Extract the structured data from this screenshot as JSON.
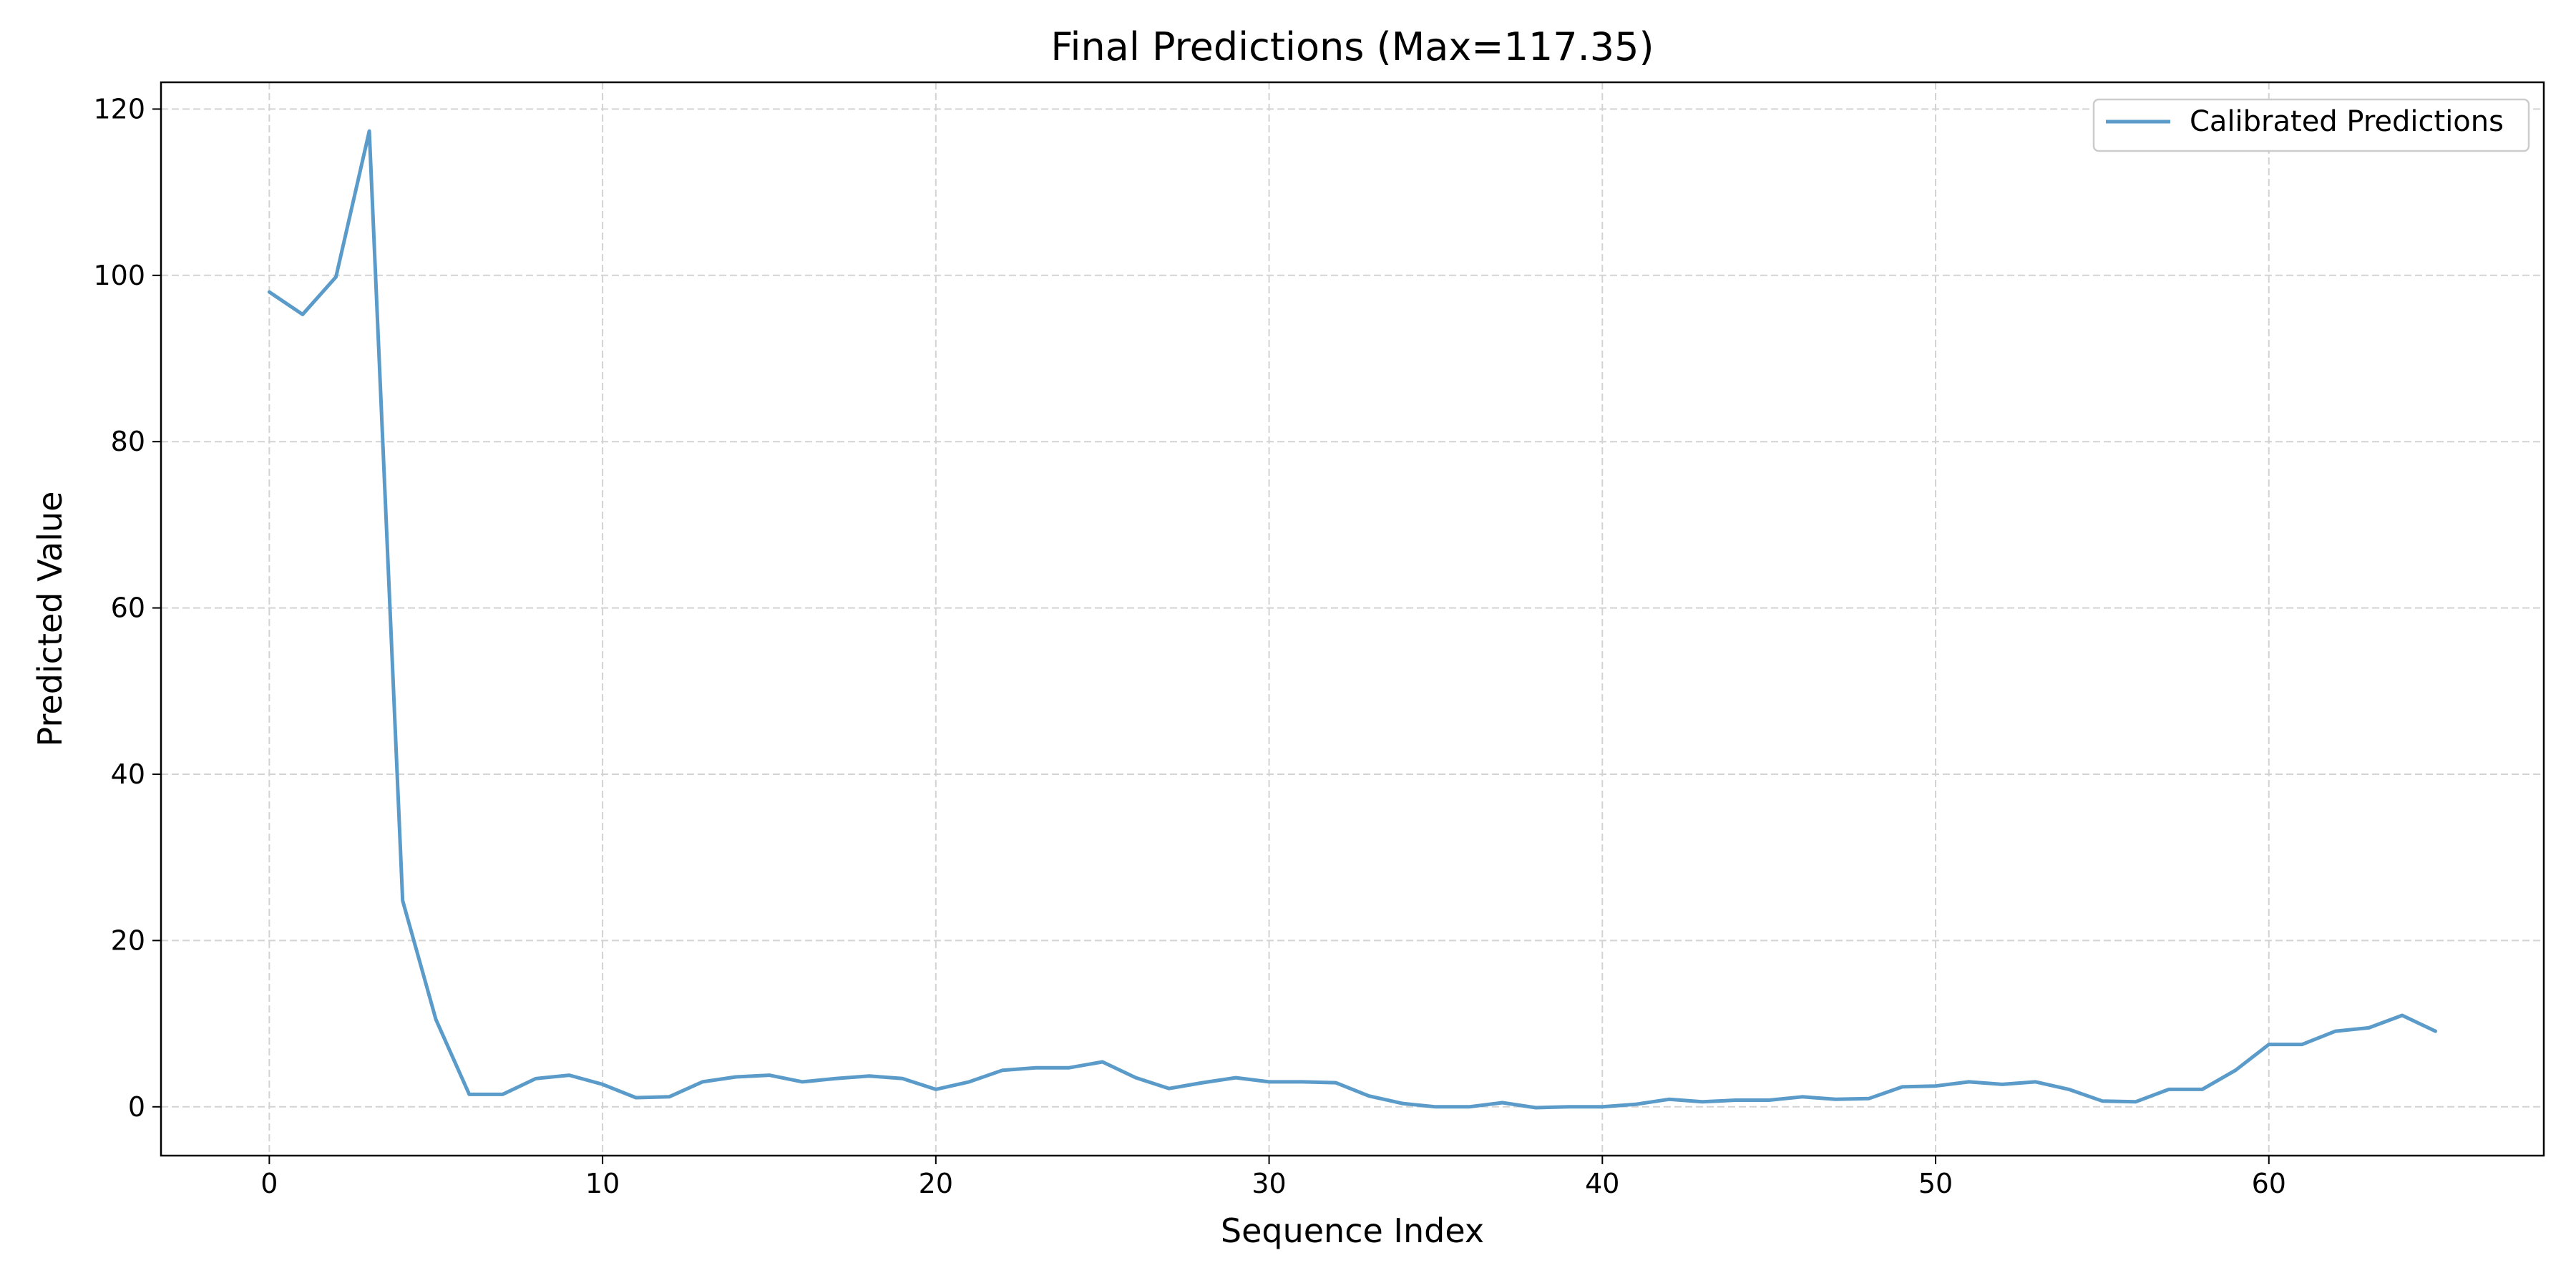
{
  "chart_data": {
    "type": "line",
    "title": "Final Predictions (Max=117.35)",
    "xlabel": "Sequence Index",
    "ylabel": "Predicted Value",
    "xlim": [
      -3.25,
      68.25
    ],
    "ylim": [
      -5.87,
      123.22
    ],
    "xticks": [
      0,
      10,
      20,
      30,
      40,
      50,
      60
    ],
    "yticks": [
      0,
      20,
      40,
      60,
      80,
      100,
      120
    ],
    "grid": true,
    "legend_position": "top-right",
    "series": [
      {
        "name": "Calibrated Predictions",
        "color": "#5b9bc9",
        "x": [
          0,
          1,
          2,
          3,
          4,
          5,
          6,
          7,
          8,
          9,
          10,
          11,
          12,
          13,
          14,
          15,
          16,
          17,
          18,
          19,
          20,
          21,
          22,
          23,
          24,
          25,
          26,
          27,
          28,
          29,
          30,
          31,
          32,
          33,
          34,
          35,
          36,
          37,
          38,
          39,
          40,
          41,
          42,
          43,
          44,
          45,
          46,
          47,
          48,
          49,
          50,
          51,
          52,
          53,
          54,
          55,
          56,
          57,
          58,
          59,
          60,
          61,
          62,
          63,
          64,
          65
        ],
        "y": [
          98.0,
          95.3,
          99.8,
          117.35,
          24.8,
          10.5,
          1.5,
          1.5,
          3.4,
          3.8,
          2.7,
          1.1,
          1.2,
          3.0,
          3.6,
          3.8,
          3.0,
          3.4,
          3.7,
          3.4,
          2.1,
          3.0,
          4.4,
          4.7,
          4.7,
          5.4,
          3.5,
          2.2,
          2.9,
          3.5,
          3.0,
          3.0,
          2.9,
          1.3,
          0.4,
          0.0,
          0.0,
          0.5,
          -0.1,
          0.0,
          0.0,
          0.3,
          0.9,
          0.6,
          0.8,
          0.8,
          1.2,
          0.9,
          1.0,
          2.4,
          2.5,
          3.0,
          2.7,
          3.0,
          2.1,
          0.7,
          0.6,
          2.1,
          2.1,
          4.4,
          7.5,
          7.5,
          9.1,
          9.5,
          11.0,
          9.1
        ]
      }
    ]
  }
}
